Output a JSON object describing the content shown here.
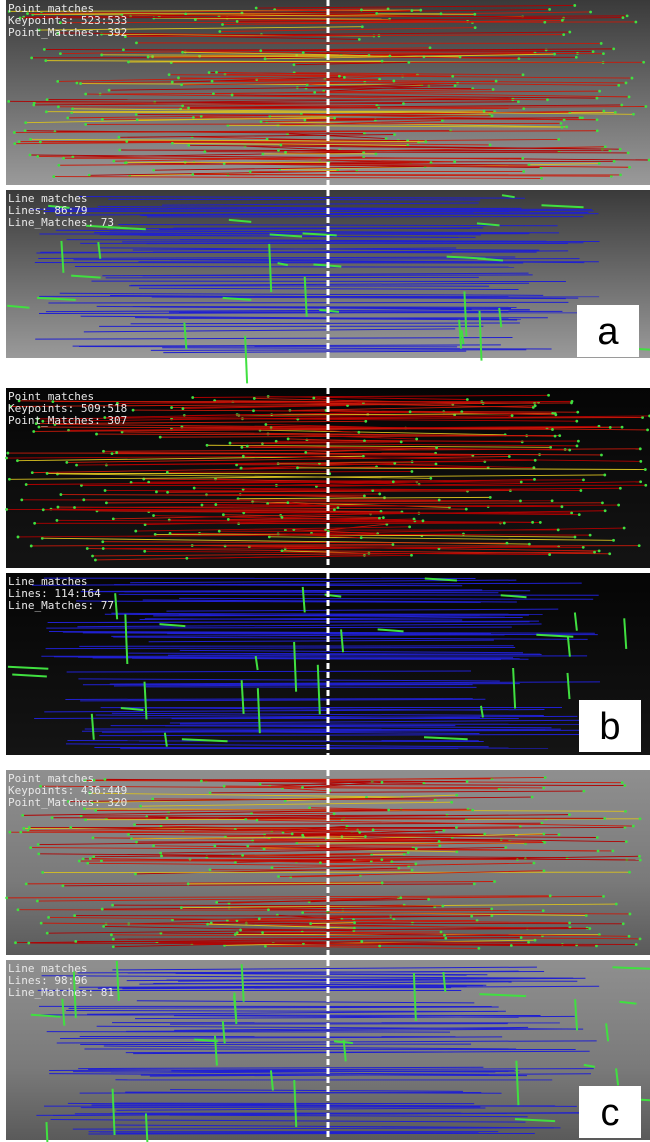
{
  "panels": [
    {
      "label": "a",
      "point_matches": {
        "title": "Point matches",
        "keypoints": "Keypoints: 523:533",
        "matches": "Point_Matches: 392"
      },
      "line_matches": {
        "title": "Line matches",
        "lines": "Lines: 86:79",
        "matches": "Line_Matches: 73"
      }
    },
    {
      "label": "b",
      "point_matches": {
        "title": "Point matches",
        "keypoints": "Keypoints: 509:518",
        "matches": "Point_Matches: 307"
      },
      "line_matches": {
        "title": "Line matches",
        "lines": "Lines: 114:164",
        "matches": "Line_Matches: 77"
      }
    },
    {
      "label": "c",
      "point_matches": {
        "title": "Point matches",
        "keypoints": "Keypoints: 436:449",
        "matches": "Point_Matches: 320"
      },
      "line_matches": {
        "title": "Line matches",
        "lines": "Lines: 98:96",
        "matches": "Line_Matches: 81"
      }
    }
  ]
}
